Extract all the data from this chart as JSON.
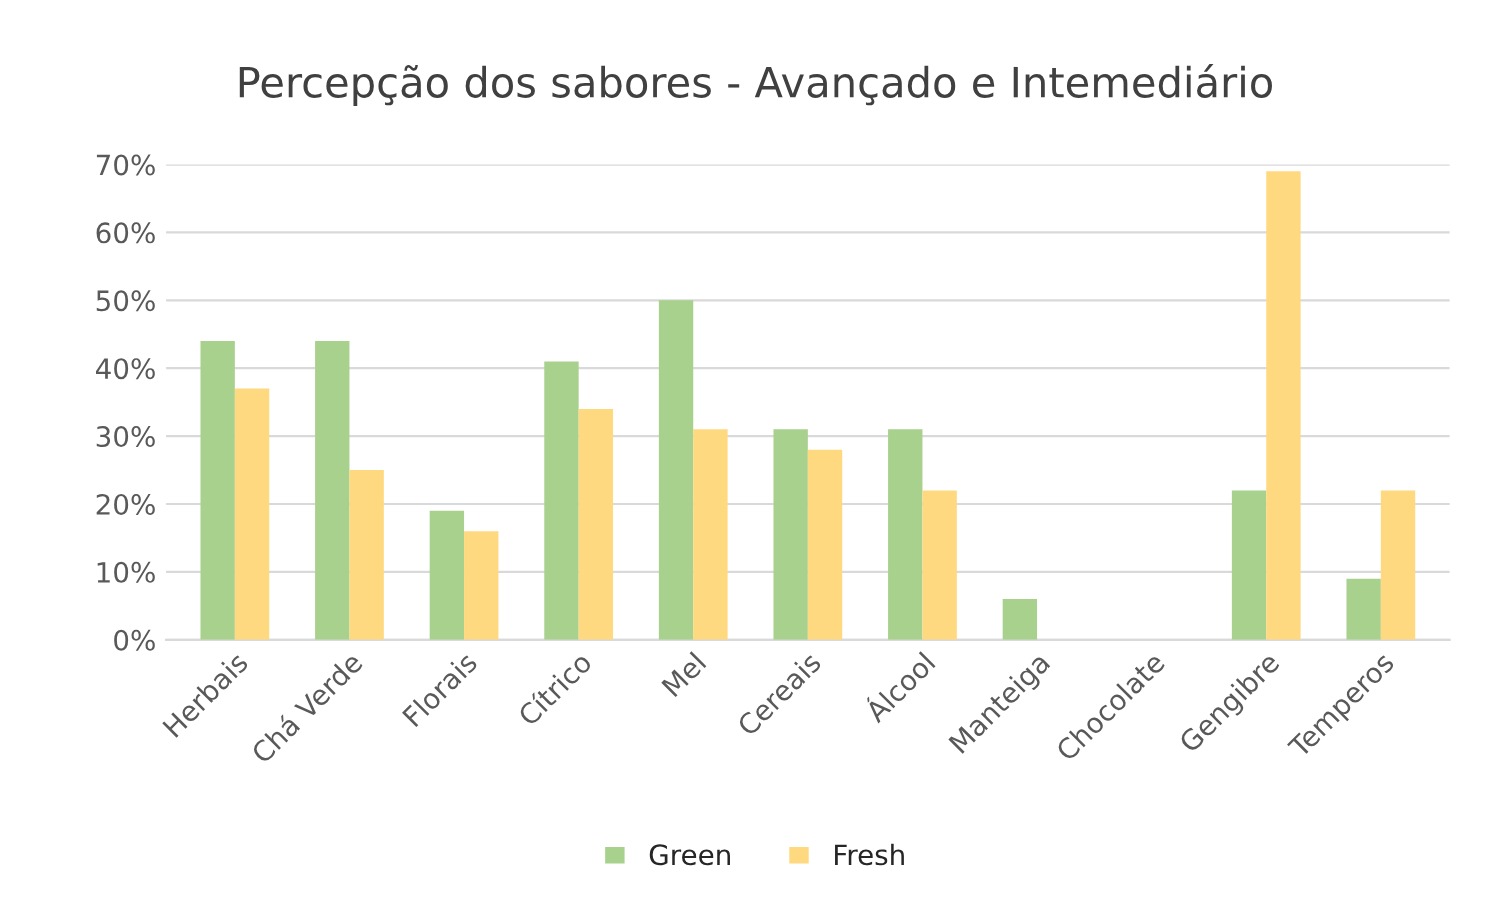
{
  "chart_data": {
    "type": "bar",
    "title": "Percepção dos sabores - Avançado e Intemediário",
    "categories": [
      "Herbais",
      "Chá Verde",
      "Florais",
      "Cítrico",
      "Mel",
      "Cereais",
      "Álcool",
      "Manteiga",
      "Chocolate",
      "Gengibre",
      "Temperos"
    ],
    "series": [
      {
        "name": "Green",
        "color": "#a9d18e",
        "values": [
          44,
          44,
          19,
          41,
          50,
          31,
          31,
          6,
          0,
          22,
          9
        ]
      },
      {
        "name": "Fresh",
        "color": "#ffd97f",
        "values": [
          37,
          25,
          16,
          34,
          31,
          28,
          22,
          0,
          0,
          69,
          22
        ]
      }
    ],
    "ylim": [
      0,
      70
    ],
    "yticks": [
      {
        "value": 0,
        "label": "0%"
      },
      {
        "value": 10,
        "label": "10%"
      },
      {
        "value": 20,
        "label": "20%"
      },
      {
        "value": 30,
        "label": "30%"
      },
      {
        "value": 40,
        "label": "40%"
      },
      {
        "value": 50,
        "label": "50%"
      },
      {
        "value": 60,
        "label": "60%"
      },
      {
        "value": 70,
        "label": "70%"
      }
    ],
    "grid": "y",
    "legend": "bottom"
  }
}
